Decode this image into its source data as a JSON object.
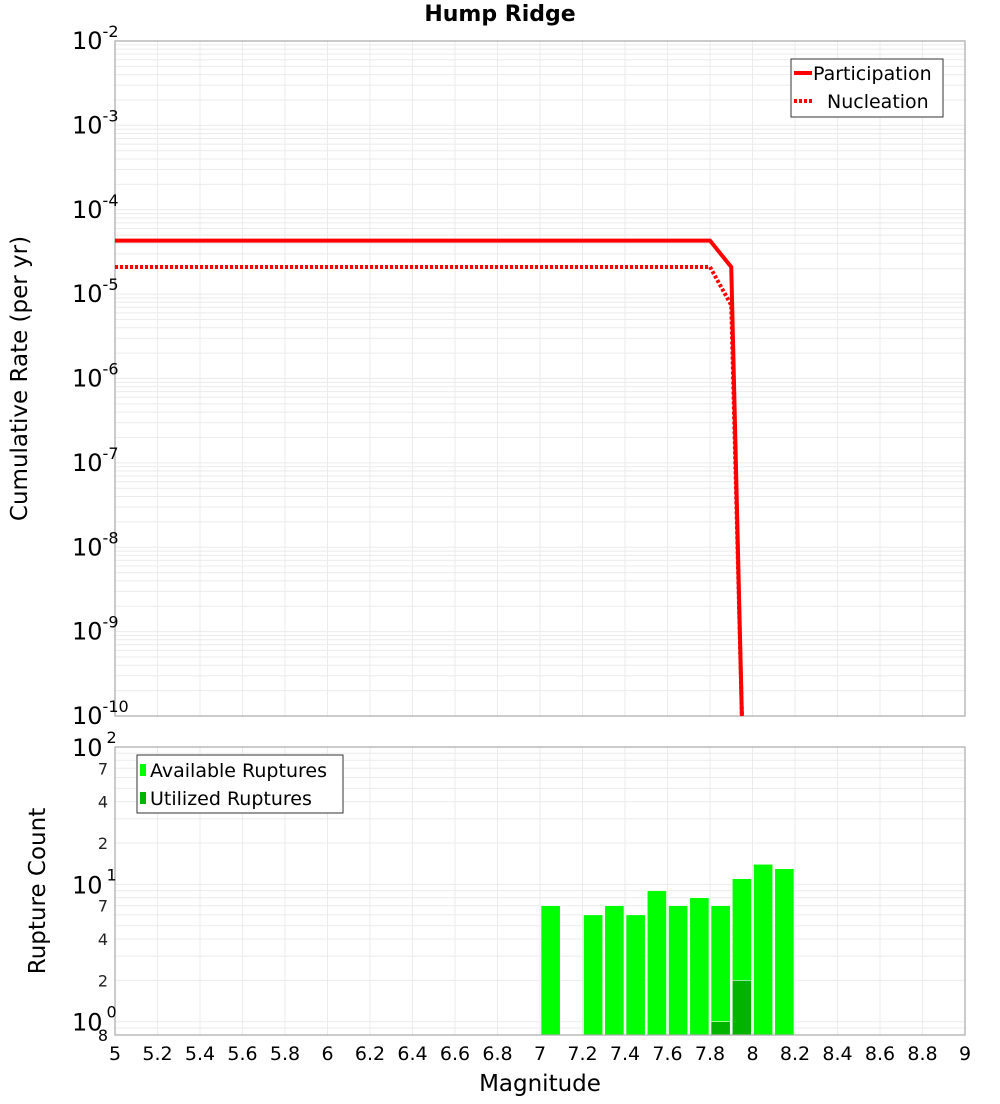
{
  "chart_data": [
    {
      "type": "line",
      "title": "Hump Ridge",
      "xlabel": "Magnitude",
      "ylabel": "Cumulative Rate (per yr)",
      "xlim": [
        5,
        9
      ],
      "ylim": [
        1e-10,
        0.01
      ],
      "yscale": "log",
      "grid": true,
      "legend_position": "top-right",
      "x_ticks": [
        "5",
        "5.2",
        "5.4",
        "5.6",
        "5.8",
        "6",
        "6.2",
        "6.4",
        "6.6",
        "6.8",
        "7",
        "7.2",
        "7.4",
        "7.6",
        "7.8",
        "8",
        "8.2",
        "8.4",
        "8.6",
        "8.8",
        "9"
      ],
      "y_ticks": [
        {
          "base": "10",
          "exp": "-2",
          "value": 0.01
        },
        {
          "base": "10",
          "exp": "-3",
          "value": 0.001
        },
        {
          "base": "10",
          "exp": "-4",
          "value": 0.0001
        },
        {
          "base": "10",
          "exp": "-5",
          "value": 1e-05
        },
        {
          "base": "10",
          "exp": "-6",
          "value": 1e-06
        },
        {
          "base": "10",
          "exp": "-7",
          "value": 1e-07
        },
        {
          "base": "10",
          "exp": "-8",
          "value": 1e-08
        },
        {
          "base": "10",
          "exp": "-9",
          "value": 1e-09
        },
        {
          "base": "10",
          "exp": "-10",
          "value": 1e-10
        }
      ],
      "series": [
        {
          "name": "Participation",
          "style": "solid",
          "color": "#ff0000",
          "x": [
            5.0,
            7.8,
            7.9,
            7.95
          ],
          "y": [
            4.3e-05,
            4.3e-05,
            2.1e-05,
            1e-10
          ]
        },
        {
          "name": "Nucleation",
          "style": "dotted",
          "color": "#ff0000",
          "x": [
            5.0,
            7.8,
            7.9,
            7.95
          ],
          "y": [
            2.1e-05,
            2.1e-05,
            7.4e-06,
            1e-10
          ]
        }
      ]
    },
    {
      "type": "bar",
      "title": "",
      "xlabel": "Magnitude",
      "ylabel": "Rupture Count",
      "xlim": [
        5,
        9
      ],
      "ylim": [
        0.8,
        100
      ],
      "yscale": "log",
      "grid": true,
      "legend_position": "top-left",
      "bar_width": 0.1,
      "x_ticks": [
        "5",
        "5.2",
        "5.4",
        "5.6",
        "5.8",
        "6",
        "6.2",
        "6.4",
        "6.6",
        "6.8",
        "7",
        "7.2",
        "7.4",
        "7.6",
        "7.8",
        "8",
        "8.2",
        "8.4",
        "8.6",
        "8.8",
        "9"
      ],
      "y_major_ticks": [
        {
          "base": "10",
          "exp": "2",
          "value": 100
        },
        {
          "base": "10",
          "exp": "1",
          "value": 10
        },
        {
          "base": "10",
          "exp": "0",
          "value": 1
        }
      ],
      "y_minor_ticks": [
        {
          "label": "7",
          "value": 70
        },
        {
          "label": "4",
          "value": 40
        },
        {
          "label": "2",
          "value": 20
        },
        {
          "label": "7",
          "value": 7
        },
        {
          "label": "4",
          "value": 4
        },
        {
          "label": "2",
          "value": 2
        },
        {
          "label": "8",
          "value": 0.8
        }
      ],
      "categories": [
        7.0,
        7.2,
        7.3,
        7.4,
        7.5,
        7.6,
        7.7,
        7.8,
        7.9,
        8.0,
        8.1
      ],
      "series": [
        {
          "name": "Available Ruptures",
          "color": "#00ff00",
          "values": [
            7,
            6,
            7,
            6,
            9,
            7,
            8,
            7,
            11,
            14,
            13
          ]
        },
        {
          "name": "Utilized Ruptures",
          "color": "#00b400",
          "values": [
            0,
            0,
            0,
            0,
            0,
            0,
            0,
            1,
            2,
            0,
            0
          ]
        }
      ]
    }
  ]
}
